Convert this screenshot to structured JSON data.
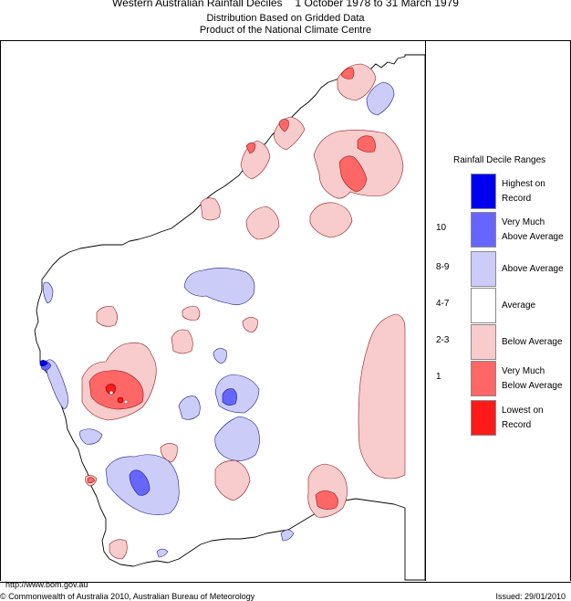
{
  "header": {
    "title_left": "Western Australian Rainfall Deciles",
    "title_right": "1 October 1978 to 31 March 1979",
    "line2": "Distribution Based on Gridded Data",
    "line3": "Product of the National Climate Centre"
  },
  "legend": {
    "title": "Rainfall Decile Ranges",
    "items": [
      {
        "code": "",
        "label": "Highest on Record",
        "color": "#0000ee"
      },
      {
        "code": "10",
        "label": "Very Much Above Average",
        "color": "#6666ff"
      },
      {
        "code": "8-9",
        "label": "Above Average",
        "color": "#ccccf8"
      },
      {
        "code": "4-7",
        "label": "Average",
        "color": "#ffffff"
      },
      {
        "code": "2-3",
        "label": "Below Average",
        "color": "#f8cccc"
      },
      {
        "code": "1",
        "label": "Very Much Below Average",
        "color": "#ff6666"
      },
      {
        "code": "",
        "label": "Lowest on Record",
        "color": "#ff1a1a"
      }
    ]
  },
  "footer": {
    "url": "http://www.bom.gov.au",
    "copyright": "© Commonwealth of Australia 2010, Australian Bureau of Meteorology",
    "issued": "Issued: 29/01/2010"
  }
}
